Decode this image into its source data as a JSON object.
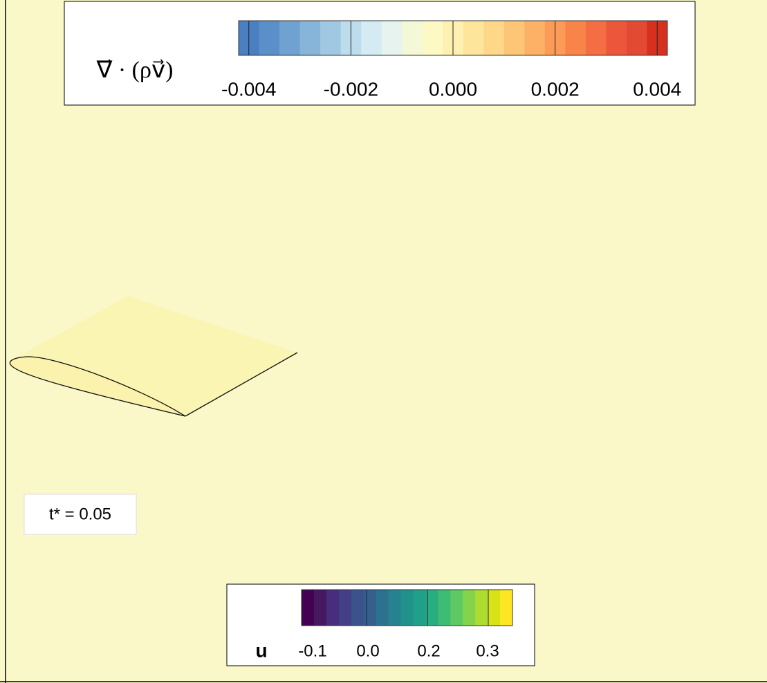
{
  "div_colorbar": {
    "label": "∇⃗ · (ρv⃗)",
    "clim": [
      -0.0042,
      0.0042
    ],
    "ticks": [
      {
        "value": -0.004,
        "label": "-0.004"
      },
      {
        "value": -0.002,
        "label": "-0.002"
      },
      {
        "value": 0,
        "label": "0.000"
      },
      {
        "value": 0.002,
        "label": "0.002"
      },
      {
        "value": 0.004,
        "label": "0.004"
      }
    ],
    "colors": [
      "#4a7fc1",
      "#5b8fc9",
      "#6fa2d0",
      "#87b5da",
      "#a0c8e2",
      "#bddcec",
      "#d4ebf3",
      "#e6f3ee",
      "#f3f8d7",
      "#fdf9c4",
      "#fef0b0",
      "#fee59c",
      "#fed888",
      "#fdc576",
      "#fdb166",
      "#fc9b57",
      "#f9844a",
      "#f46d43",
      "#ec573b",
      "#e34a33",
      "#d7301f"
    ]
  },
  "u_colorbar": {
    "label": "u",
    "ticks": [
      -0.1,
      {
        "value": 0,
        "label": "0.0"
      },
      0.2,
      0.3
    ],
    "colors": [
      "#440154",
      "#46185f",
      "#472d7b",
      "#433e85",
      "#3b528b",
      "#355f8d",
      "#2c728e",
      "#26828e",
      "#21918c",
      "#1fa088",
      "#28ae80",
      "#3fbc73",
      "#5ec962",
      "#84d44b",
      "#addc30",
      "#d8e219",
      "#fde725"
    ]
  },
  "time_label": "t* = 0.05"
}
